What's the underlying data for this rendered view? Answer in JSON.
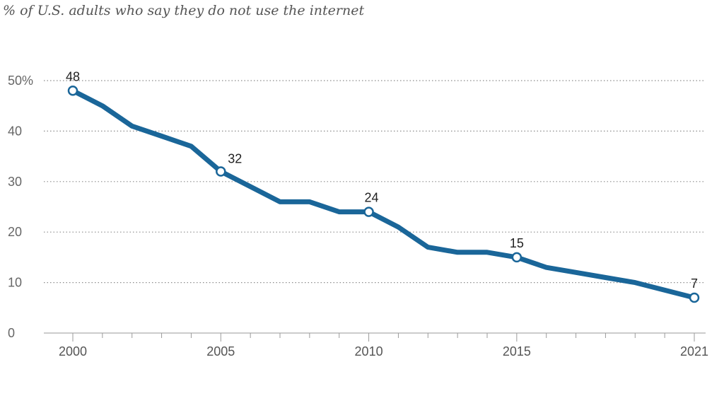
{
  "chart_data": {
    "type": "line",
    "title": "% of U.S. adults who say they do not use the internet",
    "xlabel": "",
    "ylabel": "",
    "xlim": [
      2000,
      2021
    ],
    "ylim": [
      0,
      50
    ],
    "y_ticks": [
      {
        "value": 0,
        "label": "0"
      },
      {
        "value": 10,
        "label": "10"
      },
      {
        "value": 20,
        "label": "20"
      },
      {
        "value": 30,
        "label": "30"
      },
      {
        "value": 40,
        "label": "40"
      },
      {
        "value": 50,
        "label": "50%"
      }
    ],
    "x_ticks": [
      {
        "value": 2000,
        "label": "2000"
      },
      {
        "value": 2005,
        "label": "2005"
      },
      {
        "value": 2010,
        "label": "2010"
      },
      {
        "value": 2015,
        "label": "2015"
      },
      {
        "value": 2021,
        "label": "2021"
      }
    ],
    "x_minor_ticks": [
      2001,
      2002,
      2003,
      2004,
      2006,
      2007,
      2008,
      2009,
      2011,
      2012,
      2013,
      2014,
      2016,
      2017,
      2018,
      2019,
      2020
    ],
    "grid": "horizontal dotted",
    "series": [
      {
        "name": "Do not use the internet",
        "color": "#1a6699",
        "points": [
          {
            "x": 2000,
            "y": 48
          },
          {
            "x": 2001,
            "y": 45
          },
          {
            "x": 2002,
            "y": 41
          },
          {
            "x": 2003,
            "y": 39
          },
          {
            "x": 2004,
            "y": 37
          },
          {
            "x": 2005,
            "y": 32
          },
          {
            "x": 2006,
            "y": 29
          },
          {
            "x": 2007,
            "y": 26
          },
          {
            "x": 2008,
            "y": 26
          },
          {
            "x": 2009,
            "y": 24
          },
          {
            "x": 2010,
            "y": 24
          },
          {
            "x": 2011,
            "y": 21
          },
          {
            "x": 2012,
            "y": 17
          },
          {
            "x": 2013,
            "y": 16
          },
          {
            "x": 2014,
            "y": 16
          },
          {
            "x": 2015,
            "y": 15
          },
          {
            "x": 2016,
            "y": 13
          },
          {
            "x": 2017,
            "y": 12
          },
          {
            "x": 2018,
            "y": 11
          },
          {
            "x": 2019,
            "y": 10
          },
          {
            "x": 2021,
            "y": 7
          }
        ],
        "labeled_points": [
          {
            "x": 2000,
            "y": 48,
            "label": "48"
          },
          {
            "x": 2005,
            "y": 32,
            "label": "32"
          },
          {
            "x": 2010,
            "y": 24,
            "label": "24"
          },
          {
            "x": 2015,
            "y": 15,
            "label": "15"
          },
          {
            "x": 2021,
            "y": 7,
            "label": "7"
          }
        ]
      }
    ]
  }
}
